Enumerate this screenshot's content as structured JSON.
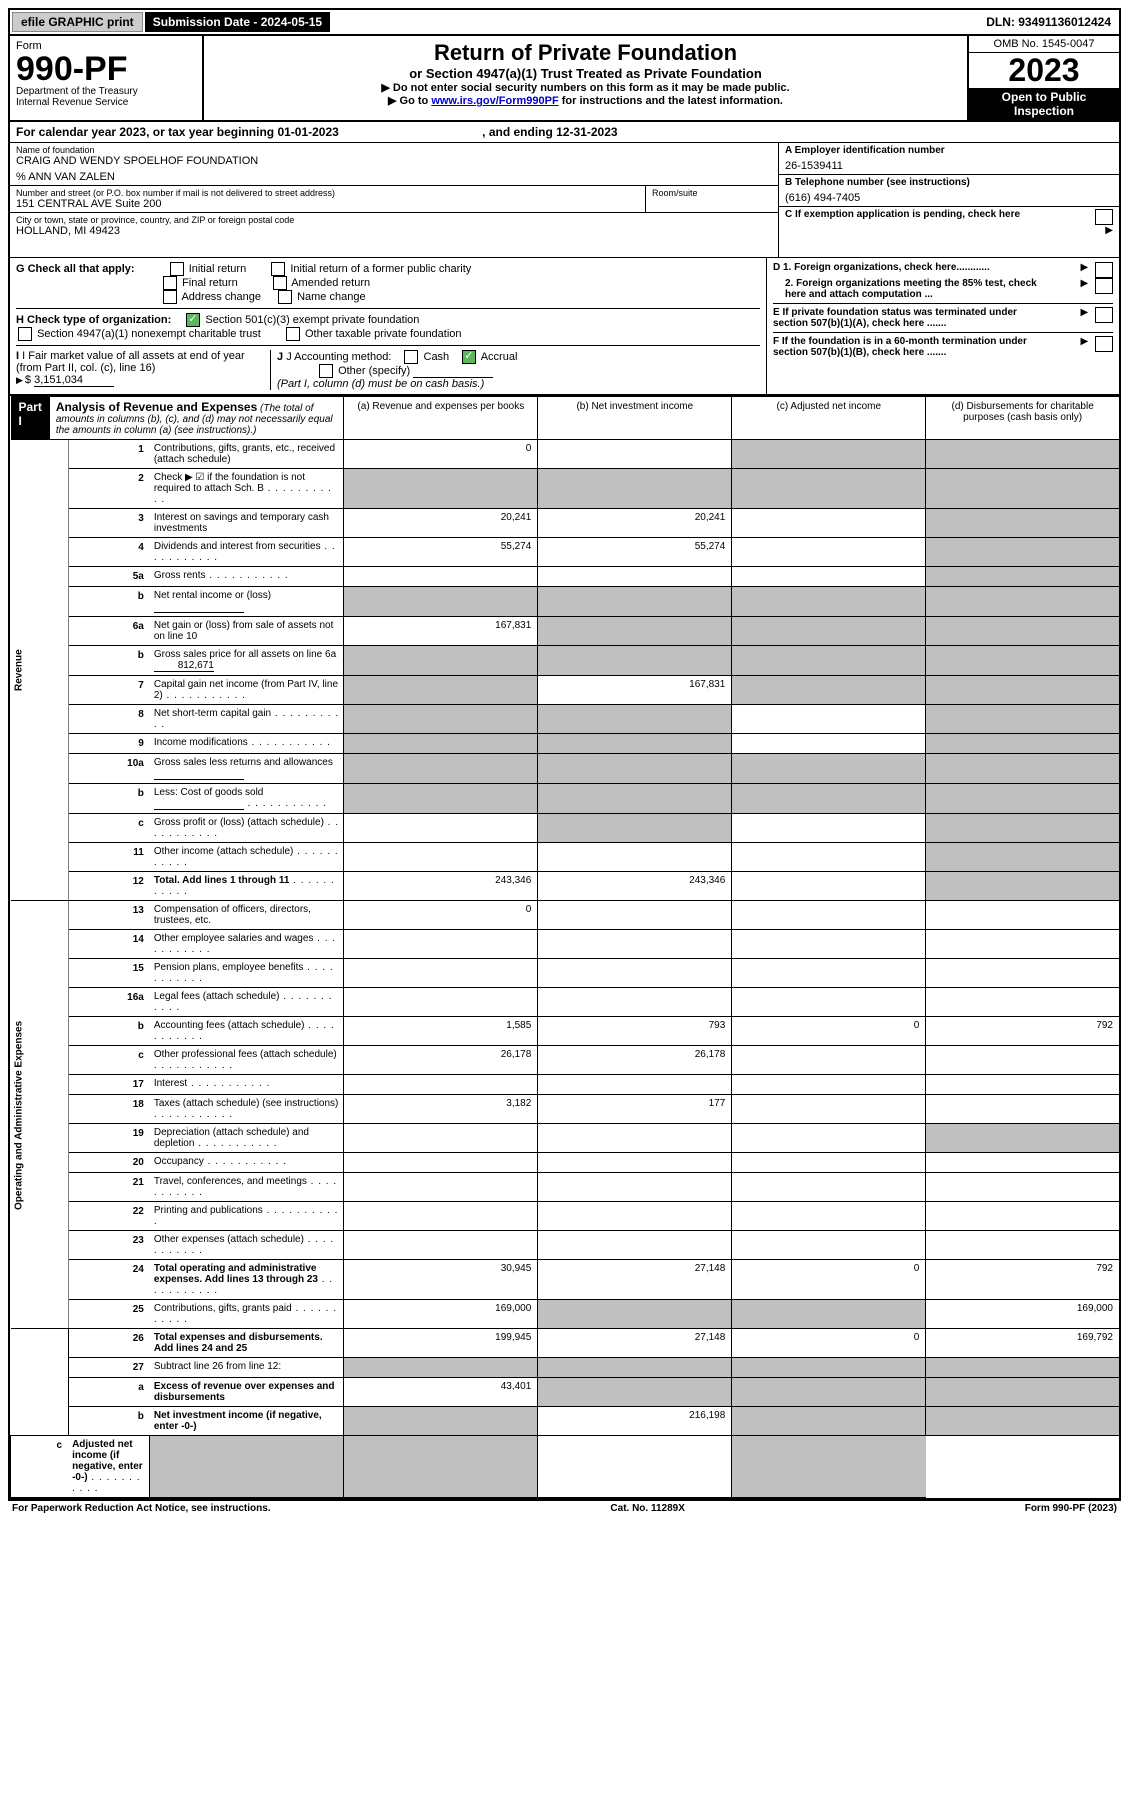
{
  "topbar": {
    "efile": "efile GRAPHIC print",
    "submission": "Submission Date - 2024-05-15",
    "dln": "DLN: 93491136012424"
  },
  "header": {
    "form_word": "Form",
    "form_num": "990-PF",
    "dept": "Department of the Treasury",
    "irs": "Internal Revenue Service",
    "title": "Return of Private Foundation",
    "subtitle": "or Section 4947(a)(1) Trust Treated as Private Foundation",
    "instr1": "▶ Do not enter social security numbers on this form as it may be made public.",
    "instr2_pre": "▶ Go to ",
    "instr2_link": "www.irs.gov/Form990PF",
    "instr2_post": " for instructions and the latest information.",
    "omb": "OMB No. 1545-0047",
    "year": "2023",
    "open": "Open to Public Inspection"
  },
  "calyear": {
    "text": "For calendar year 2023, or tax year beginning 01-01-2023",
    "ending": ", and ending 12-31-2023"
  },
  "id": {
    "name_lbl": "Name of foundation",
    "name": "CRAIG AND WENDY SPOELHOF FOUNDATION",
    "care": "% ANN VAN ZALEN",
    "addr_lbl": "Number and street (or P.O. box number if mail is not delivered to street address)",
    "addr": "151 CENTRAL AVE Suite 200",
    "room_lbl": "Room/suite",
    "city_lbl": "City or town, state or province, country, and ZIP or foreign postal code",
    "city": "HOLLAND, MI  49423",
    "ein_lbl": "A Employer identification number",
    "ein": "26-1539411",
    "tel_lbl": "B Telephone number (see instructions)",
    "tel": "(616) 494-7405",
    "c_lbl": "C If exemption application is pending, check here",
    "d1": "D 1. Foreign organizations, check here............",
    "d2": "2. Foreign organizations meeting the 85% test, check here and attach computation ...",
    "e_lbl": "E If private foundation status was terminated under section 507(b)(1)(A), check here .......",
    "f_lbl": "F If the foundation is in a 60-month termination under section 507(b)(1)(B), check here .......",
    "g_lbl": "G Check all that apply:",
    "g_opts": [
      "Initial return",
      "Initial return of a former public charity",
      "Final return",
      "Amended return",
      "Address change",
      "Name change"
    ],
    "h_lbl": "H Check type of organization:",
    "h1": "Section 501(c)(3) exempt private foundation",
    "h2": "Section 4947(a)(1) nonexempt charitable trust",
    "h3": "Other taxable private foundation",
    "i_lbl": "I Fair market value of all assets at end of year (from Part II, col. (c), line 16)",
    "i_val": "3,151,034",
    "j_lbl": "J Accounting method:",
    "j_cash": "Cash",
    "j_accr": "Accrual",
    "j_other": "Other (specify)",
    "j_note": "(Part I, column (d) must be on cash basis.)"
  },
  "part1": {
    "label": "Part I",
    "title": "Analysis of Revenue and Expenses",
    "title_note": "(The total of amounts in columns (b), (c), and (d) may not necessarily equal the amounts in column (a) (see instructions).)",
    "col_a": "(a) Revenue and expenses per books",
    "col_b": "(b) Net investment income",
    "col_c": "(c) Adjusted net income",
    "col_d": "(d) Disbursements for charitable purposes (cash basis only)"
  },
  "sections": {
    "revenue": "Revenue",
    "opex": "Operating and Administrative Expenses"
  },
  "rows": [
    {
      "n": "1",
      "desc": "Contributions, gifts, grants, etc., received (attach schedule)",
      "a": "0",
      "b": "",
      "c": "g",
      "d": "g"
    },
    {
      "n": "2",
      "desc": "Check ▶ ☑ if the foundation is not required to attach Sch. B",
      "dots": true,
      "a": "g",
      "b": "g",
      "c": "g",
      "d": "g"
    },
    {
      "n": "3",
      "desc": "Interest on savings and temporary cash investments",
      "a": "20,241",
      "b": "20,241",
      "c": "",
      "d": "g"
    },
    {
      "n": "4",
      "desc": "Dividends and interest from securities",
      "dots": true,
      "a": "55,274",
      "b": "55,274",
      "c": "",
      "d": "g"
    },
    {
      "n": "5a",
      "desc": "Gross rents",
      "dots": true,
      "a": "",
      "b": "",
      "c": "",
      "d": "g"
    },
    {
      "n": "b",
      "desc": "Net rental income or (loss)",
      "inset": true,
      "a": "g",
      "b": "g",
      "c": "g",
      "d": "g"
    },
    {
      "n": "6a",
      "desc": "Net gain or (loss) from sale of assets not on line 10",
      "a": "167,831",
      "b": "g",
      "c": "g",
      "d": "g"
    },
    {
      "n": "b",
      "desc": "Gross sales price for all assets on line 6a",
      "inset": true,
      "val_inline": "812,671",
      "a": "g",
      "b": "g",
      "c": "g",
      "d": "g"
    },
    {
      "n": "7",
      "desc": "Capital gain net income (from Part IV, line 2)",
      "dots": true,
      "a": "g",
      "b": "167,831",
      "c": "g",
      "d": "g"
    },
    {
      "n": "8",
      "desc": "Net short-term capital gain",
      "dots": true,
      "a": "g",
      "b": "g",
      "c": "",
      "d": "g"
    },
    {
      "n": "9",
      "desc": "Income modifications",
      "dots": true,
      "a": "g",
      "b": "g",
      "c": "",
      "d": "g"
    },
    {
      "n": "10a",
      "desc": "Gross sales less returns and allowances",
      "inset": true,
      "a": "g",
      "b": "g",
      "c": "g",
      "d": "g"
    },
    {
      "n": "b",
      "desc": "Less: Cost of goods sold",
      "dots": true,
      "inset": true,
      "a": "g",
      "b": "g",
      "c": "g",
      "d": "g"
    },
    {
      "n": "c",
      "desc": "Gross profit or (loss) (attach schedule)",
      "dots": true,
      "a": "",
      "b": "g",
      "c": "",
      "d": "g"
    },
    {
      "n": "11",
      "desc": "Other income (attach schedule)",
      "dots": true,
      "a": "",
      "b": "",
      "c": "",
      "d": "g"
    },
    {
      "n": "12",
      "desc": "Total. Add lines 1 through 11",
      "dots": true,
      "bold": true,
      "a": "243,346",
      "b": "243,346",
      "c": "",
      "d": "g"
    },
    {
      "n": "13",
      "desc": "Compensation of officers, directors, trustees, etc.",
      "a": "0",
      "b": "",
      "c": "",
      "d": ""
    },
    {
      "n": "14",
      "desc": "Other employee salaries and wages",
      "dots": true,
      "a": "",
      "b": "",
      "c": "",
      "d": ""
    },
    {
      "n": "15",
      "desc": "Pension plans, employee benefits",
      "dots": true,
      "a": "",
      "b": "",
      "c": "",
      "d": ""
    },
    {
      "n": "16a",
      "desc": "Legal fees (attach schedule)",
      "dots": true,
      "a": "",
      "b": "",
      "c": "",
      "d": ""
    },
    {
      "n": "b",
      "desc": "Accounting fees (attach schedule)",
      "dots": true,
      "a": "1,585",
      "b": "793",
      "c": "0",
      "d": "792"
    },
    {
      "n": "c",
      "desc": "Other professional fees (attach schedule)",
      "dots": true,
      "a": "26,178",
      "b": "26,178",
      "c": "",
      "d": ""
    },
    {
      "n": "17",
      "desc": "Interest",
      "dots": true,
      "a": "",
      "b": "",
      "c": "",
      "d": ""
    },
    {
      "n": "18",
      "desc": "Taxes (attach schedule) (see instructions)",
      "dots": true,
      "a": "3,182",
      "b": "177",
      "c": "",
      "d": ""
    },
    {
      "n": "19",
      "desc": "Depreciation (attach schedule) and depletion",
      "dots": true,
      "a": "",
      "b": "",
      "c": "",
      "d": "g"
    },
    {
      "n": "20",
      "desc": "Occupancy",
      "dots": true,
      "a": "",
      "b": "",
      "c": "",
      "d": ""
    },
    {
      "n": "21",
      "desc": "Travel, conferences, and meetings",
      "dots": true,
      "a": "",
      "b": "",
      "c": "",
      "d": ""
    },
    {
      "n": "22",
      "desc": "Printing and publications",
      "dots": true,
      "a": "",
      "b": "",
      "c": "",
      "d": ""
    },
    {
      "n": "23",
      "desc": "Other expenses (attach schedule)",
      "dots": true,
      "a": "",
      "b": "",
      "c": "",
      "d": ""
    },
    {
      "n": "24",
      "desc": "Total operating and administrative expenses. Add lines 13 through 23",
      "dots": true,
      "bold": true,
      "a": "30,945",
      "b": "27,148",
      "c": "0",
      "d": "792"
    },
    {
      "n": "25",
      "desc": "Contributions, gifts, grants paid",
      "dots": true,
      "a": "169,000",
      "b": "g",
      "c": "g",
      "d": "169,000"
    },
    {
      "n": "26",
      "desc": "Total expenses and disbursements. Add lines 24 and 25",
      "bold": true,
      "a": "199,945",
      "b": "27,148",
      "c": "0",
      "d": "169,792"
    },
    {
      "n": "27",
      "desc": "Subtract line 26 from line 12:",
      "a": "g",
      "b": "g",
      "c": "g",
      "d": "g"
    },
    {
      "n": "a",
      "desc": "Excess of revenue over expenses and disbursements",
      "bold": true,
      "a": "43,401",
      "b": "g",
      "c": "g",
      "d": "g"
    },
    {
      "n": "b",
      "desc": "Net investment income (if negative, enter -0-)",
      "bold": true,
      "a": "g",
      "b": "216,198",
      "c": "g",
      "d": "g"
    },
    {
      "n": "c",
      "desc": "Adjusted net income (if negative, enter -0-)",
      "dots": true,
      "bold": true,
      "a": "g",
      "b": "g",
      "c": "",
      "d": "g"
    }
  ],
  "footer": {
    "left": "For Paperwork Reduction Act Notice, see instructions.",
    "mid": "Cat. No. 11289X",
    "right": "Form 990-PF (2023)"
  }
}
